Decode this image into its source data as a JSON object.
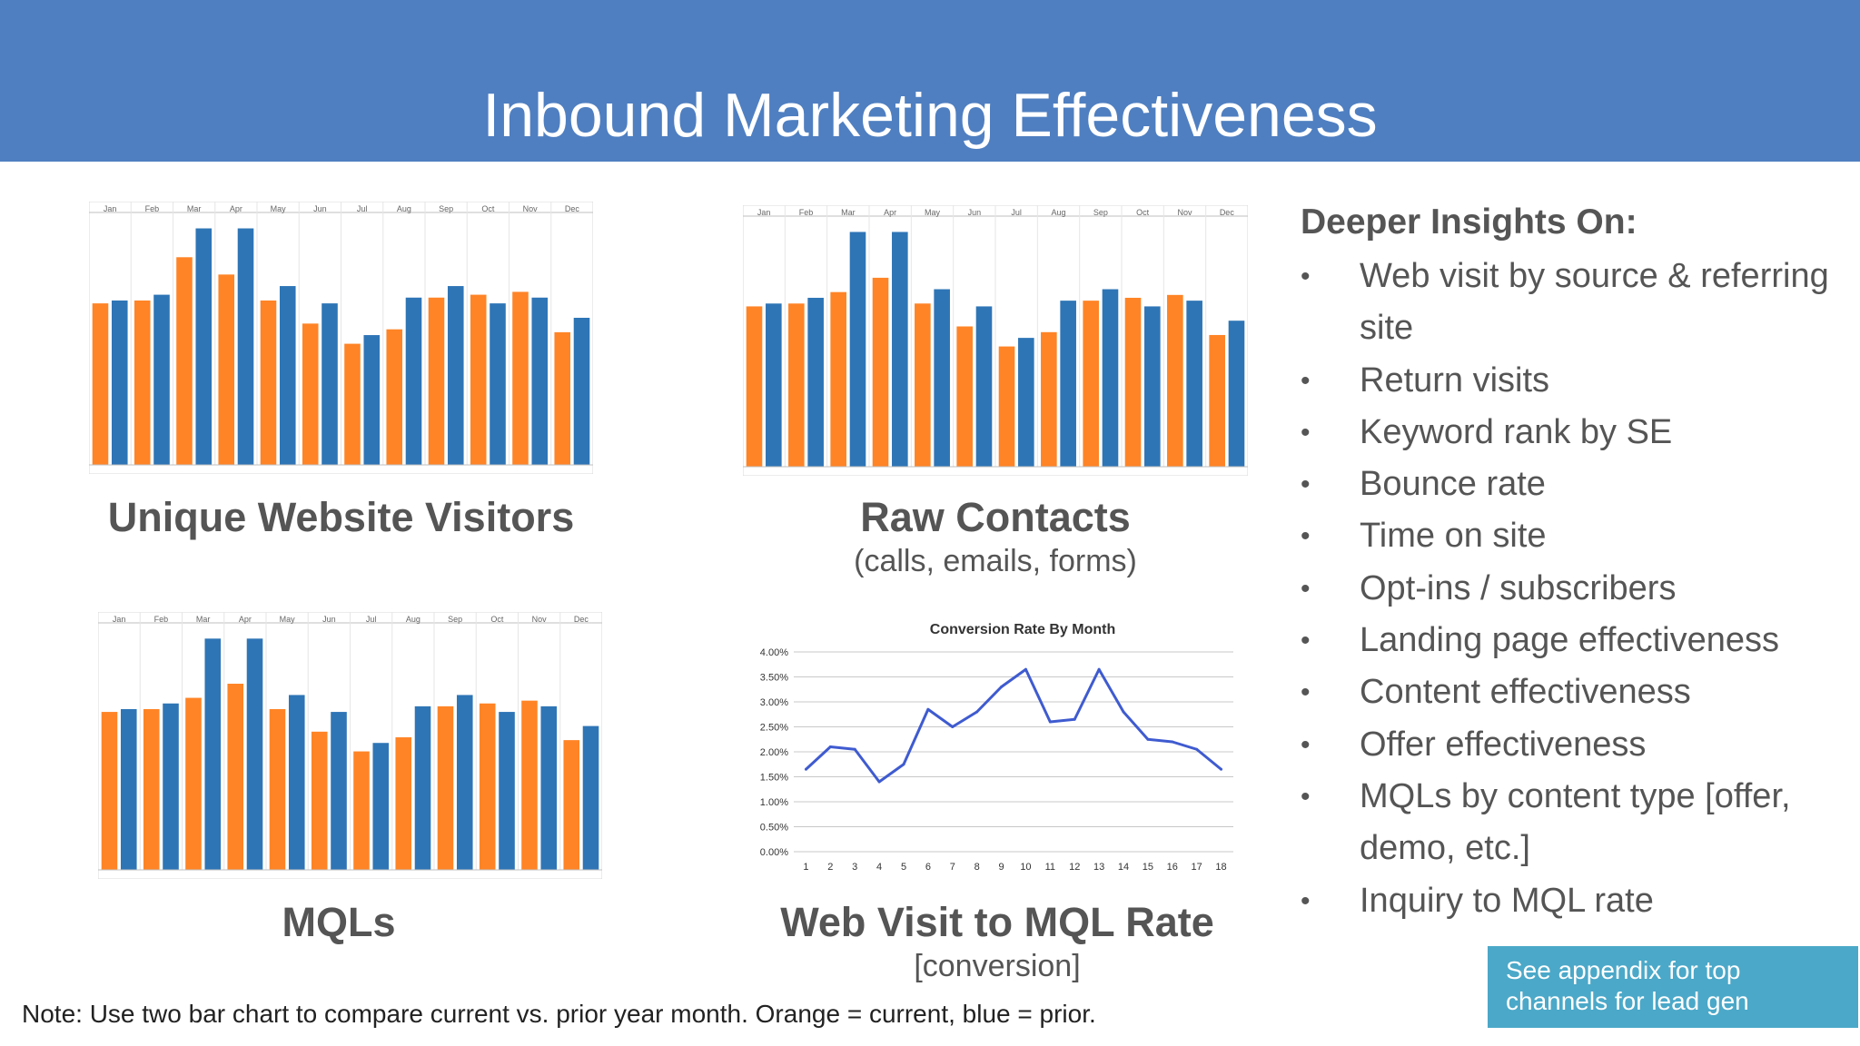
{
  "title": "Inbound Marketing Effectiveness",
  "colors": {
    "header_bg": "#4f7fc1",
    "current": "#ff8426",
    "prior": "#2e75b6",
    "line": "#3f5bd0",
    "appendix_bg": "#4ba8c8"
  },
  "captions": {
    "visitors": {
      "title": "Unique Website Visitors"
    },
    "contacts": {
      "title": "Raw Contacts",
      "subtitle": "(calls, emails, forms)"
    },
    "mqls": {
      "title": "MQLs"
    },
    "rate": {
      "title": "Web Visit to MQL Rate",
      "subtitle": "[conversion]"
    }
  },
  "chart_data": [
    {
      "type": "bar",
      "categories": [
        "Jan",
        "Feb",
        "Mar",
        "Apr",
        "May",
        "Jun",
        "Jul",
        "Aug",
        "Sep",
        "Oct",
        "Nov",
        "Dec"
      ],
      "series": [
        {
          "values": [
            56,
            57,
            72,
            66,
            57,
            49,
            42,
            47,
            58,
            59,
            60,
            46
          ],
          "color": "#ff8426"
        },
        {
          "values": [
            57,
            59,
            82,
            82,
            62,
            56,
            45,
            58,
            62,
            56,
            58,
            51
          ],
          "color": "#2e75b6"
        }
      ],
      "ylim": [
        0,
        85
      ],
      "legend": "none"
    },
    {
      "type": "bar",
      "categories": [
        "Jan",
        "Feb",
        "Mar",
        "Apr",
        "May",
        "Jun",
        "Jul",
        "Aug",
        "Sep",
        "Oct",
        "Nov",
        "Dec"
      ],
      "series": [
        {
          "values": [
            56,
            57,
            61,
            66,
            57,
            49,
            42,
            47,
            58,
            59,
            60,
            46
          ],
          "color": "#ff8426"
        },
        {
          "values": [
            57,
            59,
            82,
            82,
            62,
            56,
            45,
            58,
            62,
            56,
            58,
            51
          ],
          "color": "#2e75b6"
        }
      ],
      "ylim": [
        0,
        85
      ],
      "legend": "none"
    },
    {
      "type": "bar",
      "categories": [
        "Jan",
        "Feb",
        "Mar",
        "Apr",
        "May",
        "Jun",
        "Jul",
        "Aug",
        "Sep",
        "Oct",
        "Nov",
        "Dec"
      ],
      "series": [
        {
          "values": [
            56,
            57,
            61,
            66,
            57,
            49,
            42,
            47,
            58,
            59,
            60,
            46
          ],
          "color": "#ff8426"
        },
        {
          "values": [
            57,
            59,
            82,
            82,
            62,
            56,
            45,
            58,
            62,
            56,
            58,
            51
          ],
          "color": "#2e75b6"
        }
      ],
      "ylim": [
        0,
        85
      ],
      "legend": "none"
    },
    {
      "type": "line",
      "title": "Conversion Rate By Month",
      "x": [
        1,
        2,
        3,
        4,
        5,
        6,
        7,
        8,
        9,
        10,
        11,
        12,
        13,
        14,
        15,
        16,
        17,
        18
      ],
      "series": [
        {
          "values": [
            1.65,
            2.1,
            2.05,
            1.4,
            1.75,
            2.85,
            2.5,
            2.8,
            3.3,
            3.65,
            2.6,
            2.65,
            3.65,
            2.8,
            2.25,
            2.2,
            2.05,
            1.65
          ]
        }
      ],
      "y_ticks": [
        "0.00%",
        "0.50%",
        "1.00%",
        "1.50%",
        "2.00%",
        "2.50%",
        "3.00%",
        "3.50%",
        "4.00%"
      ],
      "ylim": [
        0,
        4
      ],
      "grid": true,
      "legend": "none"
    }
  ],
  "insights": {
    "heading": "Deeper Insights On:",
    "bullet": "•",
    "items": [
      "Web visit by source & referring site",
      "Return visits",
      "Keyword rank by SE",
      "Bounce rate",
      "Time on site",
      "Opt-ins / subscribers",
      "Landing page effectiveness",
      "Content effectiveness",
      "Offer effectiveness",
      "MQLs by content type [offer, demo, etc.]",
      "Inquiry to MQL rate"
    ]
  },
  "note": "Note:  Use two bar chart to compare current vs. prior year month. Orange = current, blue = prior.",
  "appendix": {
    "line1": "See appendix for  top",
    "line2": "channels for lead gen"
  }
}
